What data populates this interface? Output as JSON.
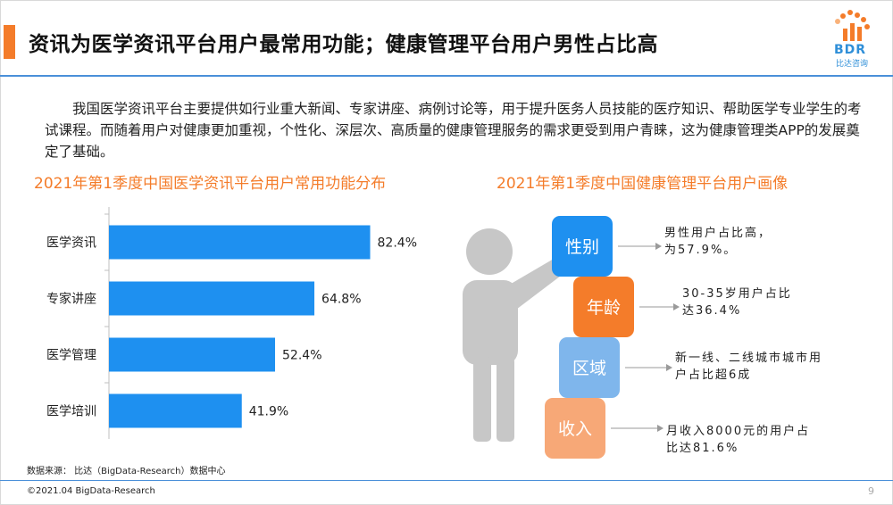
{
  "title": "资讯为医学资讯平台用户最常用功能；健康管理平台用户男性占比高",
  "logo": {
    "brand": "BDR",
    "sub": "比达咨询"
  },
  "intro": "我国医学资讯平台主要提供如行业重大新闻、专家讲座、病例讨论等，用于提升医务人员技能的医疗知识、帮助医学专业学生的考试课程。而随着用户对健康更加重视，个性化、深层次、高质量的健康管理服务的需求更受到用户青睐，这为健康管理类APP的发展奠定了基础。",
  "left_subtitle": "2021年第1季度中国医学资讯平台用户常用功能分布",
  "right_subtitle": "2021年第1季度中国健康管理平台用户画像",
  "chart_data": {
    "type": "bar",
    "orientation": "horizontal",
    "categories": [
      "医学资讯",
      "专家讲座",
      "医学管理",
      "医学培训"
    ],
    "values": [
      82.4,
      64.8,
      52.4,
      41.9
    ],
    "value_labels": [
      "82.4%",
      "64.8%",
      "52.4%",
      "41.9%"
    ],
    "title": "2021年第1季度中国医学资讯平台用户常用功能分布",
    "xlim": [
      0,
      100
    ],
    "grid": false,
    "bar_color": "#1e90f0"
  },
  "persona": {
    "items": [
      {
        "label": "性别",
        "color": "#1e90f0",
        "desc": [
          "男性用户占比高，",
          "为57.9%。"
        ]
      },
      {
        "label": "年龄",
        "color": "#f47c2a",
        "desc": [
          "30-35岁用户占比",
          "达36.4%"
        ]
      },
      {
        "label": "区域",
        "color": "#7fb6ec",
        "desc": [
          "新一线、二线城市城市用",
          "户占比超6成"
        ]
      },
      {
        "label": "收入",
        "color": "#f7a877",
        "desc": [
          "月收入8000元的用户占",
          "比达81.6%"
        ]
      }
    ]
  },
  "source": "数据来源： 比达（BigData-Research）数据中心",
  "copyright": "©2021.04 BigData-Research",
  "page_number": "9"
}
